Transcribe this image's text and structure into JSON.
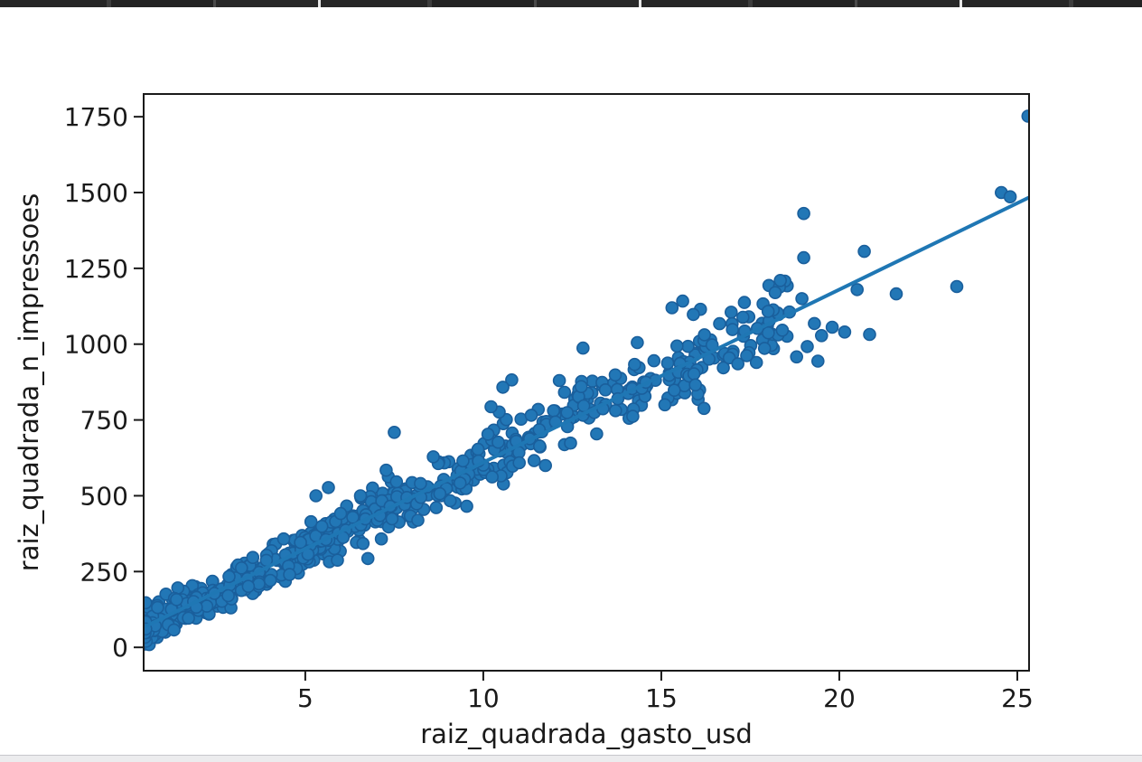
{
  "page": {
    "background": "#ffffff"
  },
  "artifacts": {
    "top_crop_strip_color": "#262626",
    "bottom_crop_strip_color": "#ececee"
  },
  "chart_data": {
    "type": "scatter",
    "title": "",
    "xlabel": "raiz_quadrada_gasto_usd",
    "ylabel": "raiz_quadrada_n_impressoes",
    "xlim": [
      0.46,
      25.33
    ],
    "ylim": [
      -77,
      1825
    ],
    "x_ticks": [
      5,
      10,
      15,
      20,
      25
    ],
    "y_ticks": [
      0,
      250,
      500,
      750,
      1000,
      1250,
      1500,
      1750
    ],
    "grid": false,
    "legend_position": "none",
    "colors": {
      "point_fill": "#2277b6",
      "point_stroke": "#1a5f9c",
      "regression_line": "#1f77b4",
      "axis": "#1a1a1a",
      "tick_label": "#1a1a1a"
    },
    "regression_line": {
      "slope": 57,
      "intercept": 40,
      "x_start": 0.46,
      "x_end": 25.33
    },
    "scatter_band": {
      "description": "dense linear band of ~800 points following y = 57x + 40 with gaussian noise, density decreasing toward high x",
      "n": 800,
      "seed": 7,
      "x_min": 0.5,
      "x_span": 18.3,
      "x_exponent": 2.2,
      "noise_sigma_base": 26,
      "noise_sigma_per_x": 2.2,
      "y_floor": 8
    },
    "notable_points": [
      [
        25.3,
        1752
      ],
      [
        24.55,
        1500
      ],
      [
        24.8,
        1486
      ],
      [
        23.3,
        1190
      ],
      [
        21.6,
        1166
      ],
      [
        20.85,
        1032
      ],
      [
        20.7,
        1306
      ],
      [
        20.5,
        1180
      ],
      [
        20.15,
        1040
      ],
      [
        19.8,
        1056
      ],
      [
        19.5,
        1028
      ],
      [
        19.3,
        1068
      ],
      [
        19.1,
        992
      ],
      [
        19.4,
        944
      ],
      [
        19.0,
        1431
      ],
      [
        19.0,
        1285
      ],
      [
        18.95,
        1150
      ],
      [
        18.8,
        958
      ],
      [
        18.6,
        1106
      ],
      [
        18.4,
        1046
      ],
      [
        18.2,
        1170
      ],
      [
        18.0,
        1108
      ],
      [
        17.9,
        986
      ],
      [
        17.7,
        1052
      ],
      [
        17.4,
        962
      ],
      [
        17.15,
        935
      ],
      [
        16.1,
        1115
      ],
      [
        15.9,
        1098
      ],
      [
        15.6,
        1142
      ],
      [
        15.3,
        1120
      ],
      [
        16.2,
        788
      ],
      [
        15.1,
        800
      ],
      [
        14.2,
        762
      ],
      [
        12.8,
        987
      ],
      [
        10.8,
        882
      ],
      [
        10.55,
        858
      ],
      [
        7.5,
        709
      ],
      [
        5.65,
        527
      ],
      [
        5.3,
        500
      ]
    ],
    "marker": {
      "radius_px": 6.5
    }
  }
}
